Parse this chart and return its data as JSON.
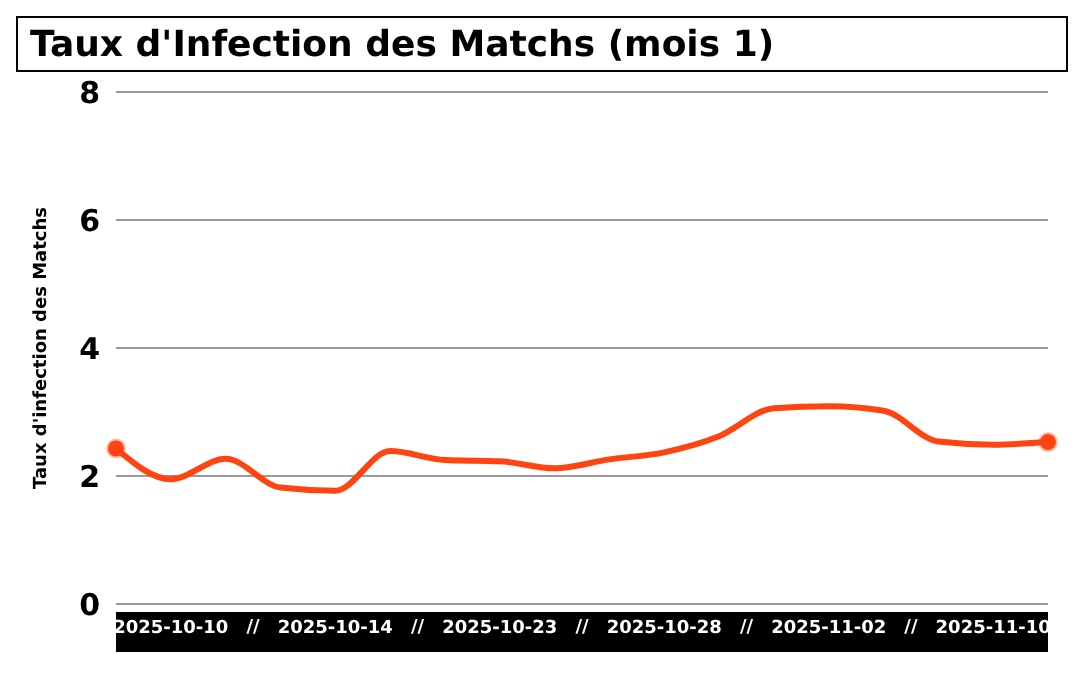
{
  "chart_data": {
    "type": "line",
    "title": "Taux d'Infection des Matchs (mois 1)",
    "ylabel": "Taux d'infection des Matchs",
    "categories": [
      null,
      "2025-10-10",
      null,
      null,
      "2025-10-14",
      null,
      null,
      "2025-10-23",
      null,
      null,
      "2025-10-28",
      null,
      null,
      "2025-11-02",
      null,
      null,
      "2025-11-10",
      null
    ],
    "series": [
      {
        "color": "#ff4411",
        "values": [
          2.43,
          1.95,
          2.27,
          1.82,
          1.77,
          2.39,
          2.25,
          2.23,
          2.12,
          2.26,
          2.37,
          2.62,
          3.06,
          3.09,
          3.02,
          2.54,
          2.49,
          2.53
        ]
      }
    ],
    "annotations": [
      "//",
      "//",
      "//",
      "//",
      "//"
    ],
    "ylim": [
      0,
      8
    ],
    "yticks": [
      0,
      2,
      4,
      6,
      8
    ],
    "grid": "y",
    "line_style": "solid"
  }
}
